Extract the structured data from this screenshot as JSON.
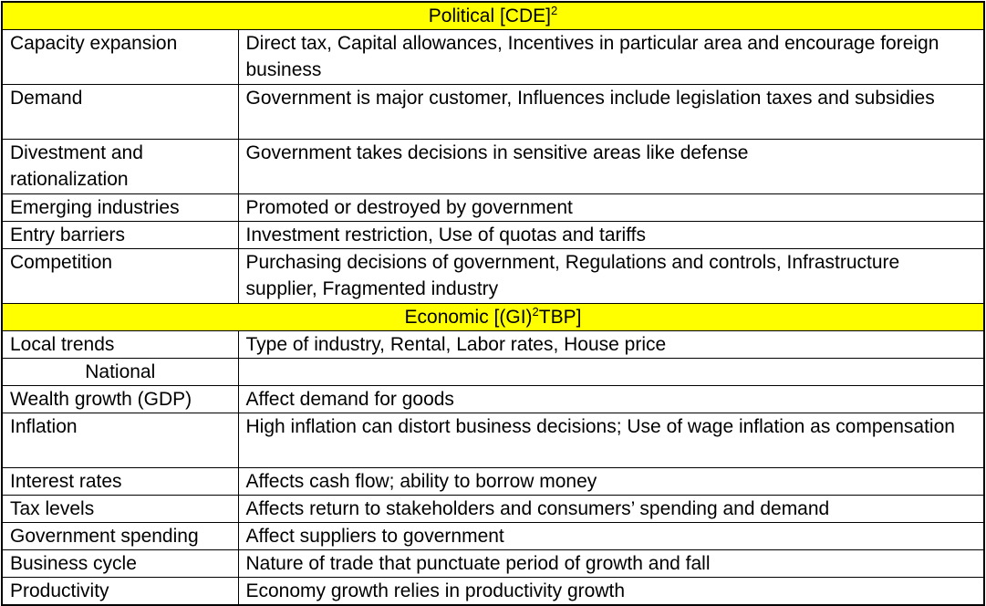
{
  "table": {
    "accent_yellow": "#ffff00",
    "border_color": "#000000",
    "text_color": "#000000",
    "sections": [
      {
        "title_parts": {
          "pre": "Political [CDE]",
          "sup": "2",
          "post": ""
        },
        "rows": [
          {
            "label": "Capacity expansion",
            "value": "Direct tax, Capital allowances, Incentives in particular area and encourage foreign business",
            "lines": 2
          },
          {
            "label": "Demand",
            "value": "Government is major customer, Influences include legislation taxes and subsidies",
            "lines": 2
          },
          {
            "label": "Divestment and rationalization",
            "value": "Government takes decisions in sensitive areas like defense",
            "lines": 2
          },
          {
            "label": "Emerging industries",
            "value": "Promoted or destroyed by government",
            "lines": 1
          },
          {
            "label": "Entry barriers",
            "value": "Investment restriction, Use of quotas and tariffs",
            "lines": 1
          },
          {
            "label": "Competition",
            "value": "Purchasing decisions of government, Regulations and controls, Infrastructure supplier, Fragmented industry",
            "lines": 2
          }
        ]
      },
      {
        "title_parts": {
          "pre": "Economic [(GI)",
          "sup": "2",
          "post": "TBP]"
        },
        "rows": [
          {
            "label": "Local trends",
            "value": "Type of industry, Rental, Labor rates, House price",
            "lines": 1
          },
          {
            "label": "National",
            "value": "",
            "lines": 1,
            "label_align": "center"
          },
          {
            "label": "Wealth growth (GDP)",
            "value": "Affect demand for goods",
            "lines": 1
          },
          {
            "label": "Inflation",
            "value": "High inflation can distort business decisions; Use of wage inflation as compensation",
            "lines": 2
          },
          {
            "label": "Interest rates",
            "value": "Affects cash flow; ability to borrow money",
            "lines": 1
          },
          {
            "label": "Tax levels",
            "value": "Affects return to stakeholders and consumers’ spending and demand",
            "lines": 1
          },
          {
            "label": "Government spending",
            "value": "Affect suppliers to government",
            "lines": 1
          },
          {
            "label": "Business cycle",
            "value": "Nature of trade that punctuate period of growth and fall",
            "lines": 1
          },
          {
            "label": "Productivity",
            "value": "Economy growth relies in productivity growth",
            "lines": 1
          }
        ]
      }
    ]
  }
}
